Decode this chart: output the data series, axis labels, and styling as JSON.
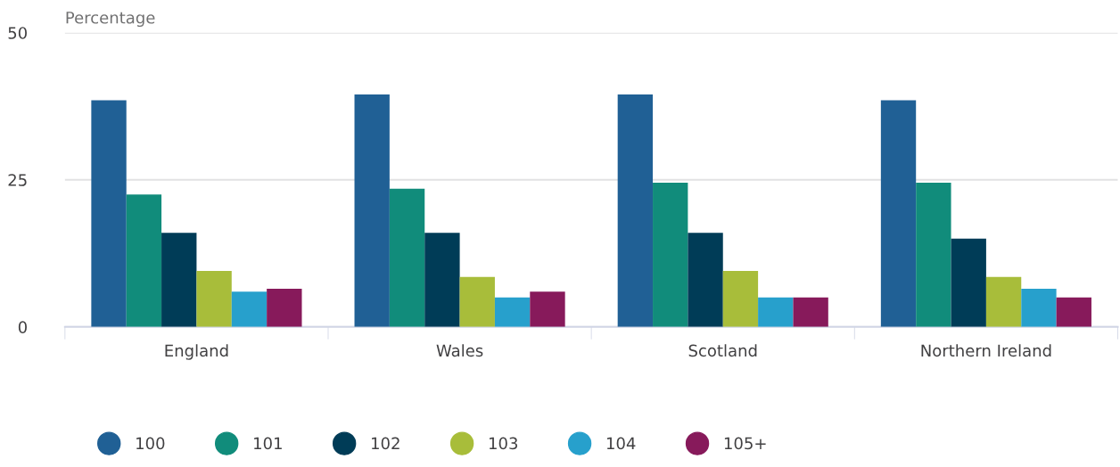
{
  "chart_data": {
    "type": "bar",
    "ylabel": "Percentage",
    "categories": [
      "England",
      "Wales",
      "Scotland",
      "Northern Ireland"
    ],
    "series": [
      {
        "name": "100",
        "color": "#206095",
        "values": [
          38.5,
          39.5,
          39.5,
          38.5
        ]
      },
      {
        "name": "101",
        "color": "#118c7b",
        "values": [
          22.5,
          23.5,
          24.5,
          24.5
        ]
      },
      {
        "name": "102",
        "color": "#003c57",
        "values": [
          16,
          16,
          16,
          15
        ]
      },
      {
        "name": "103",
        "color": "#a8bd3a",
        "values": [
          9.5,
          8.5,
          9.5,
          8.5
        ]
      },
      {
        "name": "104",
        "color": "#27a0cc",
        "values": [
          6,
          5,
          5,
          6.5
        ]
      },
      {
        "name": "105+",
        "color": "#871a5b",
        "values": [
          6.5,
          6,
          5,
          5
        ]
      }
    ],
    "ylim": [
      0,
      50
    ],
    "yticks": [
      0,
      25,
      50
    ],
    "grid": "y",
    "legend": "bottom"
  }
}
